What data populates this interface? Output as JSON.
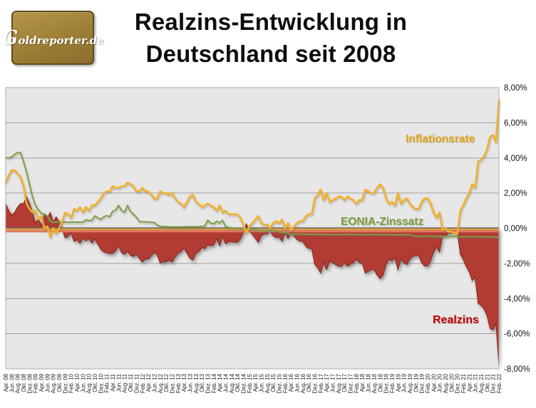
{
  "header": {
    "logo_text": "Goldreporter.de",
    "title_line1": "Realzins-Entwicklung in",
    "title_line2": "Deutschland seit 2008"
  },
  "chart_data": {
    "type": "area",
    "title": "Realzins-Entwicklung in Deutschland seit 2008",
    "ylabel": "",
    "xlabel": "",
    "ylim": [
      -8,
      8
    ],
    "grid": true,
    "plot_bg": "#E7E7E7",
    "grid_color": "#9D9D9D",
    "zero_line_colors": {
      "axis": "#6E6E6E",
      "orange": "#E2A041",
      "salmon": "#DF7A5F"
    },
    "y_tick_labels": [
      "8,00%",
      "6,00%",
      "4,00%",
      "2,00%",
      "0,00%",
      "-2,00%",
      "-4,00%",
      "-6,00%",
      "-8,00%"
    ],
    "x_labels": [
      "Apr. 08",
      "Jun. 08",
      "Aug. 08",
      "Okt. 08",
      "Dez. 08",
      "Feb. 09",
      "Apr. 09",
      "Jun. 09",
      "Aug. 09",
      "Okt. 09",
      "Dez. 09",
      "Feb. 10",
      "Apr. 10",
      "Jun. 10",
      "Aug. 10",
      "Okt. 10",
      "Dez. 10",
      "Feb. 11",
      "Apr. 11",
      "Jun. 11",
      "Aug. 11",
      "Okt. 11",
      "Dez. 11",
      "Feb. 12",
      "Apr. 12",
      "Jun. 12",
      "Aug. 12",
      "Okt. 12",
      "Dez. 12",
      "Feb. 13",
      "Apr. 13",
      "Jun. 13",
      "Aug. 13",
      "Okt. 13",
      "Dez. 13",
      "Feb. 14",
      "Apr. 14",
      "Jun. 14",
      "Aug. 14",
      "Okt. 14",
      "Dez. 14",
      "Feb. 15",
      "Apr. 15",
      "Jun. 15",
      "Aug. 15",
      "Okt. 15",
      "Dez. 15",
      "Feb. 16",
      "Apr. 16",
      "Jun. 16",
      "Aug. 16",
      "Okt. 16",
      "Dez. 16",
      "Feb. 17",
      "Apr. 17",
      "Jun. 17",
      "Aug. 17",
      "Okt. 17",
      "Dez. 17",
      "Feb. 18",
      "Apr. 18",
      "Jun. 18",
      "Aug. 18",
      "Okt. 18",
      "Dez. 18",
      "Feb. 19",
      "Apr. 19",
      "Jun. 19",
      "Aug. 19",
      "Okt. 19",
      "Dez. 19",
      "Feb. 20",
      "Apr. 20",
      "Jun. 20",
      "Aug. 20",
      "Okt. 20",
      "Dez. 20",
      "Feb. 21",
      "Apr. 21",
      "Jun. 21",
      "Aug. 21",
      "Okt. 21",
      "Dez. 21",
      "Feb. 22"
    ],
    "months_per_x_label": 2,
    "x_start": "Apr 2008",
    "x_end": "Feb 2022",
    "series": [
      {
        "name": "Inflationsrate",
        "type": "line",
        "color": "#F4B129",
        "values": [
          2.6,
          3.0,
          3.3,
          3.3,
          3.1,
          2.9,
          2.4,
          1.4,
          1.1,
          0.9,
          1.0,
          0.5,
          0.7,
          0.0,
          0.1,
          -0.5,
          0.0,
          -0.3,
          0.0,
          0.4,
          0.9,
          0.8,
          0.6,
          1.1,
          1.0,
          1.2,
          0.9,
          1.2,
          1.0,
          1.3,
          1.3,
          1.5,
          1.7,
          2.0,
          2.1,
          2.1,
          2.4,
          2.3,
          2.3,
          2.4,
          2.4,
          2.6,
          2.5,
          2.4,
          2.1,
          2.1,
          2.3,
          2.1,
          2.1,
          1.9,
          1.7,
          1.7,
          2.1,
          2.0,
          2.0,
          1.9,
          2.0,
          1.7,
          1.5,
          1.4,
          1.2,
          1.5,
          1.8,
          1.9,
          1.5,
          1.4,
          1.2,
          1.3,
          1.4,
          1.3,
          1.2,
          1.0,
          1.3,
          0.9,
          1.0,
          0.8,
          0.8,
          0.8,
          0.8,
          0.6,
          0.2,
          -0.3,
          0.1,
          0.3,
          0.5,
          0.7,
          0.3,
          0.2,
          0.2,
          0.0,
          0.3,
          0.4,
          0.3,
          0.5,
          0.0,
          0.3,
          -0.1,
          0.1,
          0.3,
          0.4,
          0.4,
          0.7,
          0.8,
          0.8,
          1.7,
          1.9,
          2.2,
          1.6,
          2.0,
          1.5,
          1.6,
          1.7,
          1.8,
          1.8,
          1.6,
          1.8,
          1.7,
          1.6,
          1.4,
          1.6,
          1.6,
          2.2,
          2.1,
          2.0,
          2.0,
          2.3,
          2.5,
          2.3,
          1.7,
          1.4,
          1.5,
          1.3,
          2.0,
          1.4,
          1.6,
          1.7,
          1.4,
          1.2,
          1.1,
          1.1,
          1.5,
          1.7,
          1.7,
          1.4,
          0.9,
          0.6,
          0.9,
          -0.1,
          0.0,
          -0.2,
          -0.2,
          -0.3,
          -0.3,
          1.0,
          1.3,
          1.7,
          2.0,
          2.5,
          2.3,
          3.8,
          3.9,
          4.1,
          4.5,
          5.2,
          5.3,
          4.9,
          7.3
        ]
      },
      {
        "name": "EONIA-Zinssatz",
        "type": "line",
        "color": "#7F9E43",
        "values": [
          4.0,
          4.0,
          4.05,
          4.2,
          4.3,
          4.3,
          3.8,
          3.2,
          2.5,
          1.8,
          1.3,
          1.05,
          0.85,
          0.8,
          0.7,
          0.4,
          0.35,
          0.35,
          0.36,
          0.36,
          0.35,
          0.34,
          0.34,
          0.35,
          0.35,
          0.34,
          0.35,
          0.48,
          0.43,
          0.45,
          0.7,
          0.59,
          0.5,
          0.66,
          0.71,
          0.66,
          0.97,
          1.03,
          1.3,
          1.01,
          0.91,
          1.3,
          0.96,
          0.79,
          0.63,
          0.38,
          0.37,
          0.36,
          0.35,
          0.34,
          0.33,
          0.18,
          0.11,
          0.1,
          0.09,
          0.08,
          0.07,
          0.07,
          0.07,
          0.07,
          0.08,
          0.08,
          0.09,
          0.09,
          0.08,
          0.08,
          0.1,
          0.13,
          0.45,
          0.3,
          0.25,
          0.4,
          0.3,
          0.45,
          0.1,
          0.05,
          0.02,
          0.01,
          0.0,
          -0.01,
          -0.03,
          -0.05,
          -0.04,
          -0.05,
          -0.07,
          -0.11,
          -0.12,
          -0.12,
          -0.12,
          -0.14,
          -0.14,
          -0.13,
          -0.2,
          -0.24,
          -0.24,
          -0.29,
          -0.34,
          -0.34,
          -0.33,
          -0.33,
          -0.34,
          -0.34,
          -0.35,
          -0.35,
          -0.35,
          -0.35,
          -0.35,
          -0.35,
          -0.36,
          -0.36,
          -0.36,
          -0.36,
          -0.36,
          -0.36,
          -0.36,
          -0.36,
          -0.34,
          -0.36,
          -0.36,
          -0.36,
          -0.37,
          -0.36,
          -0.36,
          -0.36,
          -0.36,
          -0.36,
          -0.37,
          -0.36,
          -0.36,
          -0.37,
          -0.37,
          -0.37,
          -0.37,
          -0.37,
          -0.36,
          -0.37,
          -0.36,
          -0.4,
          -0.46,
          -0.45,
          -0.46,
          -0.45,
          -0.45,
          -0.45,
          -0.46,
          -0.46,
          -0.46,
          -0.47,
          -0.47,
          -0.47,
          -0.47,
          -0.47,
          -0.47,
          -0.48,
          -0.48,
          -0.48,
          -0.48,
          -0.48,
          -0.48,
          -0.48,
          -0.48,
          -0.49,
          -0.49,
          -0.49,
          -0.49,
          -0.5,
          -0.5
        ]
      },
      {
        "name": "Realzins",
        "type": "area",
        "color": "#B23B33",
        "border_color": "#8A2A20",
        "derived": "EONIA-Zinssatz minus Inflationsrate"
      }
    ],
    "annotations": {
      "inflationsrate": "Inflationsrate",
      "eonia": "EONIA-Zinssatz",
      "realzins": "Realzins"
    }
  }
}
